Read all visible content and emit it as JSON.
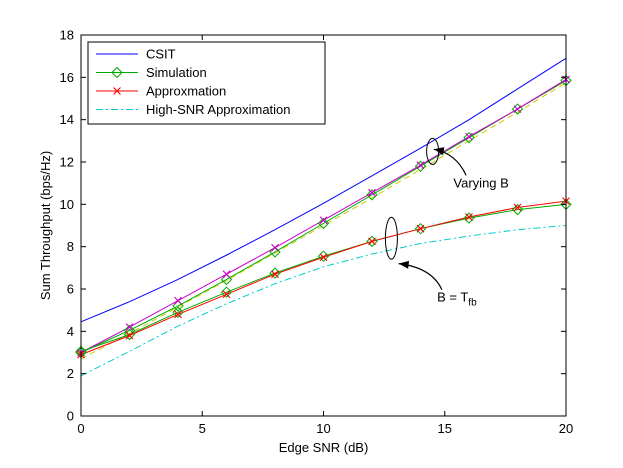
{
  "chart_data": {
    "type": "line",
    "title": "",
    "xlabel": "Edge SNR (dB)",
    "ylabel": "Sum Throughput (bps/Hz)",
    "xlim": [
      0,
      20
    ],
    "ylim": [
      0,
      18
    ],
    "xticks": [
      0,
      5,
      10,
      15,
      20
    ],
    "yticks": [
      0,
      2,
      4,
      6,
      8,
      10,
      12,
      14,
      16,
      18
    ],
    "grid": false,
    "legend_position": "top-left",
    "series": [
      {
        "name": "CSIT",
        "color": "#0000ff",
        "style": "solid",
        "marker": "none",
        "in_legend": true,
        "x": [
          0,
          2,
          4,
          6,
          8,
          10,
          12,
          14,
          16,
          18,
          20
        ],
        "y": [
          4.45,
          5.4,
          6.45,
          7.6,
          8.8,
          10.05,
          11.35,
          12.65,
          14.0,
          15.45,
          16.9
        ]
      },
      {
        "name": "Simulation",
        "group": "Varying B",
        "color": "#00aa00",
        "style": "solid",
        "marker": "diamond",
        "in_legend": true,
        "x": [
          0,
          2,
          4,
          6,
          8,
          10,
          12,
          14,
          16,
          18,
          20
        ],
        "y": [
          3.0,
          4.05,
          5.2,
          6.45,
          7.75,
          9.1,
          10.45,
          11.8,
          13.15,
          14.5,
          15.85
        ]
      },
      {
        "name": "Approxmation",
        "group": "Varying B",
        "color": "#cc00cc",
        "style": "solid",
        "marker": "x",
        "in_legend": false,
        "x": [
          0,
          2,
          4,
          6,
          8,
          10,
          12,
          14,
          16,
          18,
          20
        ],
        "y": [
          3.0,
          4.2,
          5.45,
          6.7,
          7.95,
          9.25,
          10.55,
          11.85,
          13.2,
          14.5,
          15.9
        ]
      },
      {
        "name": "High-SNR Approximation",
        "group": "Varying B",
        "color": "#cccc00",
        "style": "dashed",
        "marker": "none",
        "in_legend": false,
        "x": [
          0,
          2,
          4,
          6,
          8,
          10,
          12,
          14,
          16,
          18,
          20
        ],
        "y": [
          2.7,
          3.9,
          5.15,
          6.4,
          7.7,
          9.0,
          10.3,
          11.65,
          13.0,
          14.35,
          15.75
        ]
      },
      {
        "name": "Simulation",
        "group": "B = Tfb",
        "color": "#00aa00",
        "style": "solid",
        "marker": "diamond",
        "in_legend": false,
        "x": [
          0,
          2,
          4,
          6,
          8,
          10,
          12,
          14,
          16,
          18,
          20
        ],
        "y": [
          3.05,
          3.85,
          4.9,
          5.85,
          6.75,
          7.55,
          8.25,
          8.85,
          9.35,
          9.75,
          10.0
        ]
      },
      {
        "name": "Approxmation",
        "group": "B = Tfb",
        "color": "#ff0000",
        "style": "solid",
        "marker": "x",
        "in_legend": true,
        "x": [
          0,
          2,
          4,
          6,
          8,
          10,
          12,
          14,
          16,
          18,
          20
        ],
        "y": [
          2.9,
          3.8,
          4.8,
          5.75,
          6.7,
          7.5,
          8.25,
          8.85,
          9.4,
          9.85,
          10.15
        ]
      },
      {
        "name": "High-SNR Approximation",
        "group": "B = Tfb",
        "color": "#00cccc",
        "style": "dashdot",
        "marker": "none",
        "in_legend": true,
        "x": [
          0,
          2,
          4,
          6,
          8,
          10,
          12,
          14,
          16,
          18,
          20
        ],
        "y": [
          1.9,
          3.05,
          4.25,
          5.3,
          6.25,
          7.05,
          7.65,
          8.15,
          8.5,
          8.8,
          9.0
        ]
      }
    ],
    "annotations": [
      {
        "text": "Varying B",
        "ellipse": {
          "x": 14.5,
          "y": 12.5
        },
        "arrow_to": [
          14.55,
          12.6
        ],
        "label_at": [
          16.5,
          10.8
        ]
      },
      {
        "text": "B = T",
        "subscript": "fb",
        "ellipse": {
          "x": 12.8,
          "y": 8.4
        },
        "arrow_to": [
          13.1,
          7.2
        ],
        "label_at": [
          15.5,
          5.4
        ]
      }
    ]
  }
}
